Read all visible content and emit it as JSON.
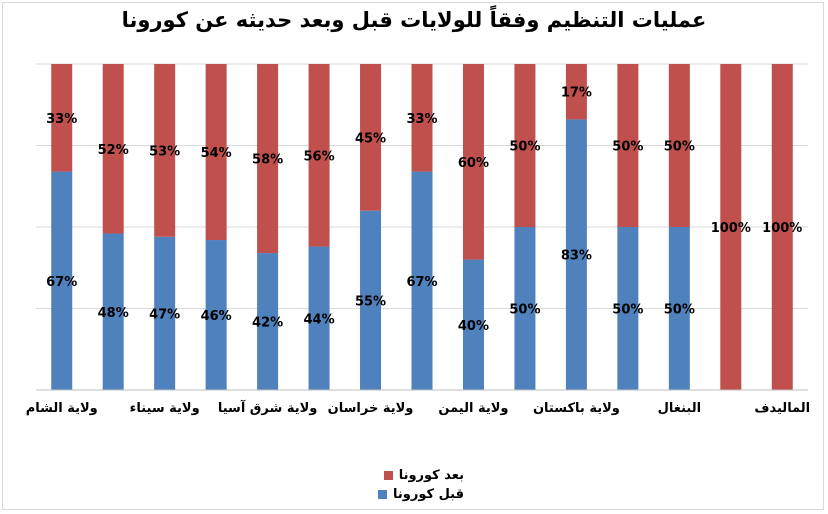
{
  "chart_data": {
    "type": "bar",
    "stacked": true,
    "percent": true,
    "title": "عمليات التنظيم وفقاً للولايات قبل وبعد حديثه عن كورونا",
    "categories": [
      "ولاية الشام",
      "",
      "ولاية سيناء",
      "",
      "ولاية شرق آسيا",
      "",
      "ولاية خراسان",
      "",
      "ولاية اليمن",
      "",
      "ولاية باكستان",
      "",
      "البنغال",
      "",
      "الماليدف"
    ],
    "series": [
      {
        "name": "قبل كورونا",
        "color": "#4F81BD",
        "values": [
          67,
          48,
          47,
          46,
          42,
          44,
          55,
          67,
          40,
          50,
          83,
          50,
          50,
          0,
          0
        ],
        "labels": [
          "67%",
          "48%",
          "47%",
          "46%",
          "42%",
          "44%",
          "55%",
          "67%",
          "40%",
          "50%",
          "83%",
          "50%",
          "50%",
          "",
          ""
        ]
      },
      {
        "name": "بعد كورونا",
        "color": "#C0504D",
        "values": [
          33,
          52,
          53,
          54,
          58,
          56,
          45,
          33,
          60,
          50,
          17,
          50,
          50,
          100,
          100
        ],
        "labels": [
          "33%",
          "52%",
          "53%",
          "54%",
          "58%",
          "56%",
          "45%",
          "33%",
          "60%",
          "50%",
          "17%",
          "50%",
          "50%",
          "100%",
          "100%"
        ]
      }
    ],
    "ylim": [
      0,
      100
    ],
    "grid": true,
    "legend_position": "bottom"
  }
}
